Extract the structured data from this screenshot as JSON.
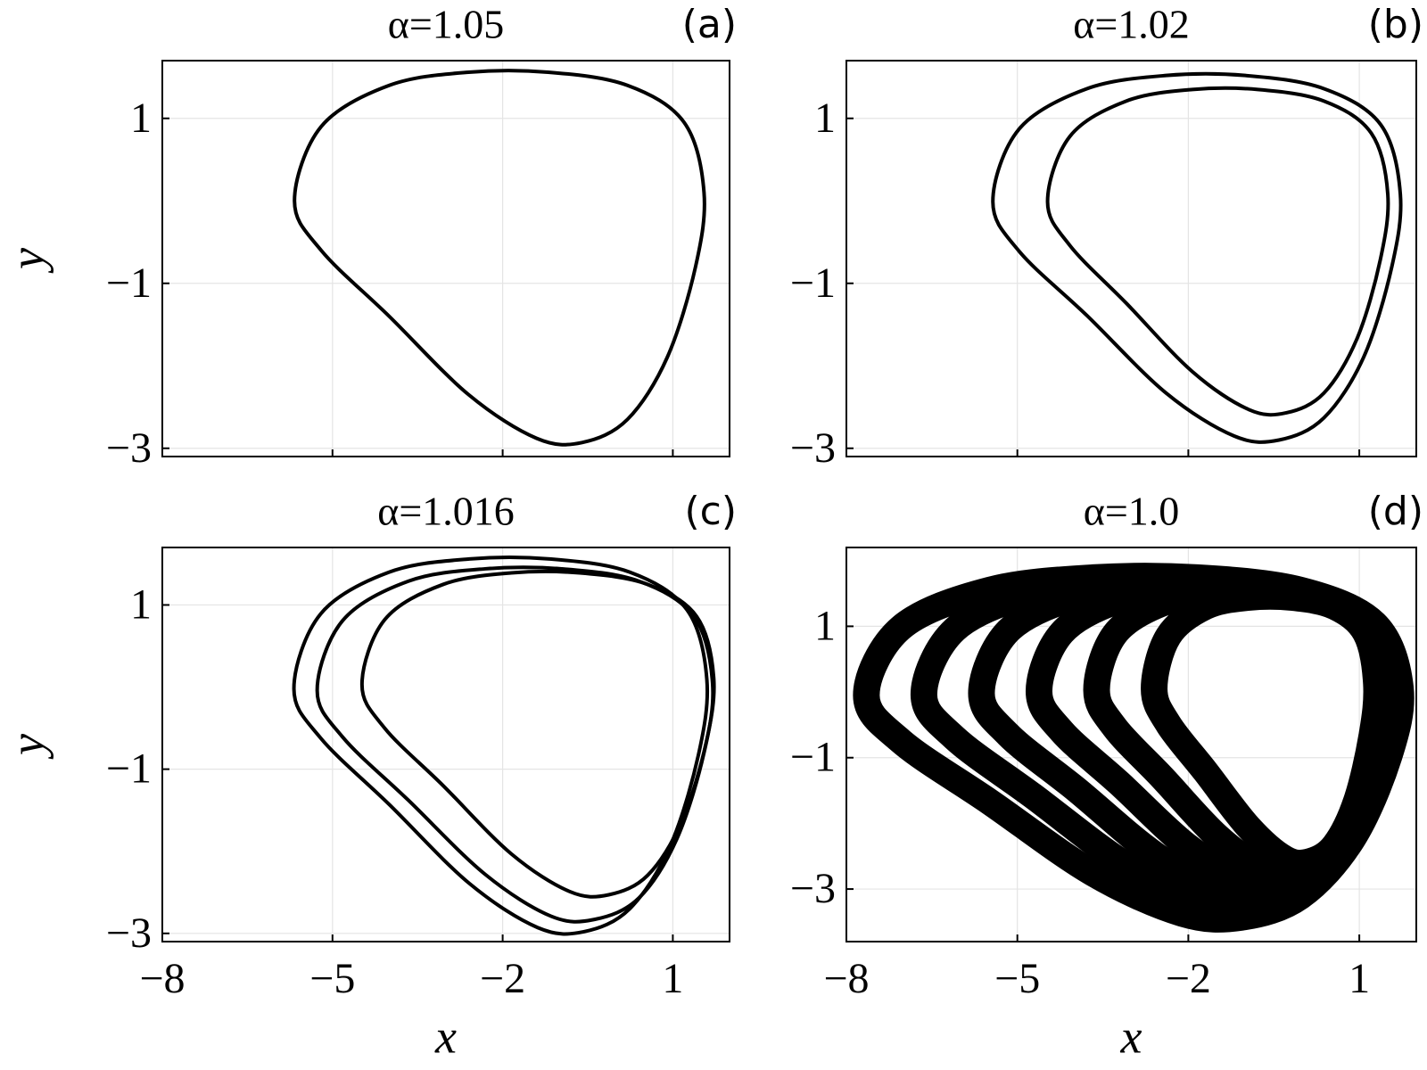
{
  "chart_data": [
    {
      "type": "line",
      "title": "α=1.05",
      "panel_label": "(a)",
      "ylabel": "y",
      "closed": true,
      "grid": true,
      "xtick_labels": false,
      "xlim": [
        -8,
        2
      ],
      "ylim": [
        -3.1,
        1.7
      ],
      "xticks": [
        {
          "value": -8,
          "label": "−8"
        },
        {
          "value": -5,
          "label": "−5"
        },
        {
          "value": -2,
          "label": "−2"
        },
        1
      ],
      "yticks": [
        {
          "value": -3,
          "label": "−3"
        },
        {
          "value": -1,
          "label": "−1"
        },
        1
      ],
      "series": [
        {
          "color": "#000000",
          "x": [
            -5.67,
            -5.2,
            -4.0,
            -2.6,
            -1.2,
            0.2,
            1.2,
            1.55,
            1.4,
            0.9,
            0.2,
            -0.6,
            -1.4,
            -2.6,
            -4.0,
            -5.2
          ],
          "y": [
            0.0,
            0.9,
            1.4,
            1.56,
            1.56,
            1.4,
            0.95,
            0.1,
            -0.8,
            -1.9,
            -2.65,
            -2.93,
            -2.88,
            -2.35,
            -1.4,
            -0.6
          ]
        }
      ]
    },
    {
      "type": "line",
      "title": "α=1.02",
      "panel_label": "(b)",
      "closed": true,
      "grid": true,
      "xtick_labels": false,
      "xlim": [
        -8,
        2
      ],
      "ylim": [
        -3.1,
        1.7
      ],
      "xticks": [
        {
          "value": -8,
          "label": "−8"
        },
        {
          "value": -5,
          "label": "−5"
        },
        {
          "value": -2,
          "label": "−2"
        },
        1
      ],
      "yticks": [
        {
          "value": -3,
          "label": "−3"
        },
        {
          "value": -1,
          "label": "−1"
        },
        1
      ],
      "series": [
        {
          "color": "#000000",
          "x": [
            -5.43,
            -4.97,
            -3.78,
            -2.39,
            -1.0,
            0.38,
            1.38,
            1.72,
            1.57,
            1.08,
            0.38,
            -0.41,
            -1.2,
            -2.39,
            -3.78,
            -4.97
          ],
          "y": [
            -0.01,
            0.87,
            1.36,
            1.52,
            1.52,
            1.36,
            0.92,
            0.08,
            -0.8,
            -1.89,
            -2.63,
            -2.9,
            -2.85,
            -2.33,
            -1.39,
            -0.61
          ]
        },
        {
          "color": "#000000",
          "x": [
            -4.47,
            -4.08,
            -3.09,
            -1.93,
            -0.78,
            0.38,
            1.21,
            1.5,
            1.37,
            0.96,
            0.38,
            -0.28,
            -0.94,
            -1.93,
            -3.09,
            -4.08
          ],
          "y": [
            -0.01,
            0.78,
            1.21,
            1.35,
            1.35,
            1.21,
            0.82,
            0.08,
            -0.71,
            -1.67,
            -2.33,
            -2.57,
            -2.53,
            -2.07,
            -1.24,
            -0.54
          ]
        }
      ]
    },
    {
      "type": "line",
      "title": "α=1.016",
      "panel_label": "(c)",
      "xlabel": "x",
      "ylabel": "y",
      "closed": true,
      "grid": true,
      "xtick_labels": true,
      "xlim": [
        -8,
        2
      ],
      "ylim": [
        -3.1,
        1.7
      ],
      "xticks": [
        {
          "value": -8,
          "label": "−8"
        },
        {
          "value": -5,
          "label": "−5"
        },
        {
          "value": -2,
          "label": "−2"
        },
        1
      ],
      "yticks": [
        {
          "value": -3,
          "label": "−3"
        },
        {
          "value": -1,
          "label": "−1"
        },
        1
      ],
      "series": [
        {
          "color": "#000000",
          "x": [
            -5.68,
            -5.21,
            -4.0,
            -2.59,
            -1.17,
            0.24,
            1.25,
            1.6,
            1.45,
            0.95,
            0.24,
            -0.57,
            -1.38,
            -2.59,
            -4.0,
            -5.21
          ],
          "y": [
            -0.02,
            0.89,
            1.4,
            1.56,
            1.56,
            1.4,
            0.94,
            0.09,
            -0.83,
            -1.94,
            -2.7,
            -2.98,
            -2.93,
            -2.39,
            -1.43,
            -0.62
          ]
        },
        {
          "color": "#000000",
          "x": [
            -5.27,
            -4.82,
            -3.66,
            -2.31,
            -0.96,
            0.4,
            1.37,
            1.7,
            1.55,
            1.07,
            0.4,
            -0.38,
            -1.15,
            -2.31,
            -3.66,
            -4.82
          ],
          "y": [
            -0.04,
            0.81,
            1.29,
            1.44,
            1.44,
            1.29,
            0.86,
            0.05,
            -0.8,
            -1.85,
            -2.57,
            -2.83,
            -2.79,
            -2.28,
            -1.38,
            -0.61
          ]
        },
        {
          "color": "#000000",
          "x": [
            -4.48,
            -4.08,
            -3.05,
            -1.85,
            -0.64,
            0.56,
            1.42,
            1.72,
            1.59,
            1.16,
            0.56,
            -0.13,
            -0.82,
            -1.85,
            -3.05,
            -4.08
          ],
          "y": [
            0.03,
            0.82,
            1.25,
            1.39,
            1.39,
            1.25,
            0.86,
            0.12,
            -0.67,
            -1.63,
            -2.29,
            -2.53,
            -2.49,
            -2.03,
            -1.2,
            -0.5
          ]
        }
      ]
    },
    {
      "type": "line",
      "title": "α=1.0",
      "panel_label": "(d)",
      "xlabel": "x",
      "closed": true,
      "grid": true,
      "xtick_labels": true,
      "xlim": [
        -8,
        2
      ],
      "ylim": [
        -3.8,
        2.2
      ],
      "xticks": [
        {
          "value": -8,
          "label": "−8"
        },
        {
          "value": -5,
          "label": "−5"
        },
        {
          "value": -2,
          "label": "−2"
        },
        1
      ],
      "yticks": [
        {
          "value": -3,
          "label": "−3"
        },
        {
          "value": -1,
          "label": "−1"
        },
        1
      ],
      "series": [
        {
          "color": "#000000",
          "x": [
            -7.65,
            -7.04,
            -5.49,
            -3.67,
            -1.85,
            -0.03,
            1.27,
            1.72,
            1.52,
            0.88,
            -0.03,
            -1.07,
            -2.11,
            -3.67,
            -5.49,
            -7.04
          ],
          "y": [
            -0.05,
            0.98,
            1.55,
            1.74,
            1.74,
            1.55,
            1.04,
            0.06,
            -0.98,
            -2.24,
            -3.11,
            -3.43,
            -3.37,
            -2.76,
            -1.67,
            -0.75
          ]
        },
        {
          "color": "#000000",
          "x": [
            -6.64,
            -6.1,
            -4.73,
            -3.12,
            -1.52,
            0.09,
            1.24,
            1.64,
            1.46,
            0.89,
            0.09,
            -0.83,
            -1.75,
            -3.12,
            -4.73,
            -6.1
          ],
          "y": [
            -0.04,
            0.95,
            1.5,
            1.68,
            1.68,
            1.5,
            1.01,
            0.08,
            -0.91,
            -2.13,
            -2.95,
            -3.26,
            -3.21,
            -2.62,
            -1.58,
            -0.7
          ]
        },
        {
          "color": "#000000",
          "x": [
            -5.63,
            -5.16,
            -3.97,
            -2.58,
            -1.18,
            0.21,
            1.21,
            1.55,
            1.4,
            0.91,
            0.21,
            -0.59,
            -1.39,
            -2.58,
            -3.97,
            -5.16
          ],
          "y": [
            -0.02,
            0.93,
            1.45,
            1.62,
            1.62,
            1.45,
            0.98,
            0.09,
            -0.85,
            -2.01,
            -2.8,
            -3.09,
            -3.04,
            -2.48,
            -1.48,
            -0.65
          ]
        },
        {
          "color": "#000000",
          "x": [
            -4.62,
            -4.22,
            -3.21,
            -2.03,
            -0.85,
            0.33,
            1.18,
            1.47,
            1.34,
            0.92,
            0.33,
            -0.35,
            -1.02,
            -2.03,
            -3.21,
            -4.22
          ],
          "y": [
            0.01,
            0.9,
            1.4,
            1.56,
            1.56,
            1.4,
            0.95,
            0.1,
            -0.79,
            -1.89,
            -2.64,
            -2.92,
            -2.87,
            -2.34,
            -1.39,
            -0.6
          ]
        },
        {
          "color": "#000000",
          "x": [
            -3.61,
            -3.29,
            -2.46,
            -1.49,
            -0.52,
            0.45,
            1.14,
            1.38,
            1.28,
            0.94,
            0.45,
            -0.1,
            -0.66,
            -1.49,
            -2.46,
            -3.29
          ],
          "y": [
            0.03,
            0.88,
            1.35,
            1.5,
            1.5,
            1.35,
            0.92,
            0.12,
            -0.73,
            -1.78,
            -2.49,
            -2.75,
            -2.71,
            -2.2,
            -1.3,
            -0.54
          ]
        },
        {
          "color": "#000000",
          "x": [
            -2.6,
            -2.35,
            -1.7,
            -0.94,
            -0.19,
            0.57,
            1.11,
            1.3,
            1.22,
            0.95,
            0.57,
            0.14,
            -0.3,
            -0.94,
            -1.7,
            -2.35
          ],
          "y": [
            0.05,
            0.85,
            1.3,
            1.44,
            1.44,
            1.3,
            0.9,
            0.13,
            -0.67,
            -1.66,
            -2.33,
            -2.58,
            -2.54,
            -2.06,
            -1.21,
            -0.49
          ]
        }
      ]
    }
  ]
}
